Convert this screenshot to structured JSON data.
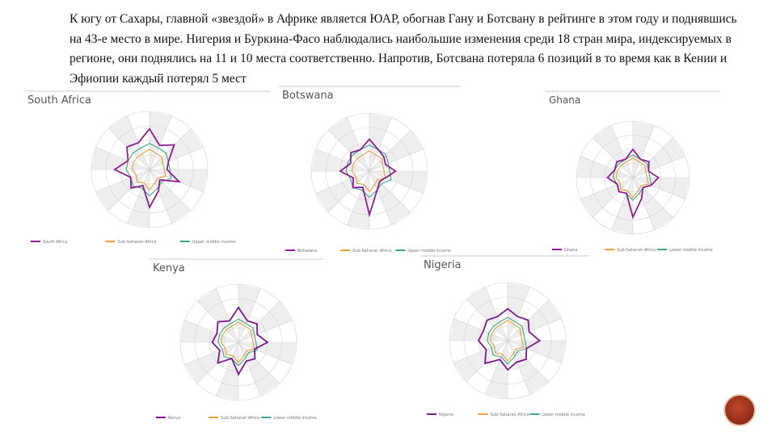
{
  "text": "К югу от Сахары, главной «звездой» в Африке является ЮАР, обогнав Гану и Ботсвану в рейтинге в этом году и поднявшись на 43-е место в мире. Нигерия и Буркина-Фасо наблюдались наибольшие изменения среди 18 стран мира, индексируемых в регионе, они поднялись на 11 и 10 места соответственно. Напротив, Ботсвана потеряла 6 позиций в то время как в Кении и Эфиопии каждый потерял 5 мест",
  "panels": [
    {
      "type": "radar",
      "title": "South Africa",
      "rlim": [
        0,
        100
      ],
      "series": [
        {
          "name": "South Africa",
          "color": "#8e1f8e",
          "values": [
            70,
            45,
            60,
            35,
            30,
            55,
            25,
            40,
            65,
            30,
            45,
            35,
            60,
            40,
            55,
            50
          ]
        },
        {
          "name": "Sub-Saharan Africa",
          "color": "#e3a13b",
          "values": [
            35,
            30,
            30,
            25,
            25,
            30,
            20,
            25,
            35,
            25,
            30,
            25,
            30,
            30,
            30,
            30
          ]
        },
        {
          "name": "Upper middle income",
          "color": "#3aa58a",
          "values": [
            45,
            40,
            40,
            35,
            35,
            40,
            30,
            35,
            45,
            35,
            40,
            35,
            40,
            40,
            40,
            40
          ]
        }
      ]
    },
    {
      "type": "radar",
      "title": "Botswana",
      "rlim": [
        0,
        100
      ],
      "series": [
        {
          "name": "Botswana",
          "color": "#8e1f8e",
          "values": [
            55,
            40,
            35,
            30,
            45,
            30,
            25,
            35,
            75,
            30,
            40,
            30,
            50,
            35,
            45,
            40
          ]
        },
        {
          "name": "Sub-Saharan Africa",
          "color": "#e3a13b",
          "values": [
            35,
            30,
            30,
            25,
            25,
            30,
            20,
            25,
            35,
            25,
            30,
            25,
            30,
            30,
            30,
            30
          ]
        },
        {
          "name": "Upper middle income",
          "color": "#3aa58a",
          "values": [
            45,
            40,
            40,
            35,
            35,
            40,
            30,
            35,
            45,
            35,
            40,
            35,
            40,
            40,
            40,
            40
          ]
        }
      ]
    },
    {
      "type": "radar",
      "title": "Ghana",
      "rlim": [
        0,
        100
      ],
      "series": [
        {
          "name": "Ghana",
          "color": "#8e1f8e",
          "values": [
            50,
            35,
            40,
            30,
            45,
            35,
            25,
            40,
            70,
            30,
            35,
            30,
            45,
            35,
            40,
            35
          ]
        },
        {
          "name": "Sub-Saharan Africa",
          "color": "#e3a13b",
          "values": [
            35,
            30,
            30,
            25,
            25,
            30,
            20,
            25,
            35,
            25,
            30,
            25,
            30,
            30,
            30,
            30
          ]
        },
        {
          "name": "Lower middle income",
          "color": "#3aa58a",
          "values": [
            40,
            35,
            35,
            30,
            30,
            35,
            25,
            30,
            40,
            30,
            35,
            30,
            35,
            35,
            35,
            35
          ]
        }
      ]
    },
    {
      "type": "radar",
      "title": "Kenya",
      "rlim": [
        0,
        100
      ],
      "series": [
        {
          "name": "Kenya",
          "color": "#7a1a8e",
          "values": [
            60,
            40,
            45,
            35,
            50,
            30,
            40,
            35,
            55,
            30,
            50,
            35,
            45,
            40,
            50,
            40
          ]
        },
        {
          "name": "Sub-Saharan Africa",
          "color": "#e3a13b",
          "values": [
            35,
            30,
            30,
            25,
            25,
            30,
            20,
            25,
            35,
            25,
            30,
            25,
            30,
            30,
            30,
            30
          ]
        },
        {
          "name": "Lower middle income",
          "color": "#3aa58a",
          "values": [
            40,
            35,
            35,
            30,
            30,
            35,
            25,
            30,
            40,
            30,
            35,
            30,
            35,
            35,
            35,
            35
          ]
        }
      ]
    },
    {
      "type": "radar",
      "title": "Nigeria",
      "rlim": [
        0,
        100
      ],
      "series": [
        {
          "name": "Nigeria",
          "color": "#7a1a8e",
          "values": [
            55,
            45,
            50,
            40,
            55,
            35,
            45,
            40,
            50,
            35,
            55,
            40,
            50,
            45,
            50,
            45
          ]
        },
        {
          "name": "Sub-Saharan Africa",
          "color": "#e3a13b",
          "values": [
            35,
            30,
            30,
            25,
            25,
            30,
            20,
            25,
            35,
            25,
            30,
            25,
            30,
            30,
            30,
            30
          ]
        },
        {
          "name": "Lower middle income",
          "color": "#3aa58a",
          "values": [
            40,
            35,
            35,
            30,
            30,
            35,
            25,
            30,
            40,
            30,
            35,
            30,
            35,
            35,
            35,
            35
          ]
        }
      ]
    }
  ]
}
